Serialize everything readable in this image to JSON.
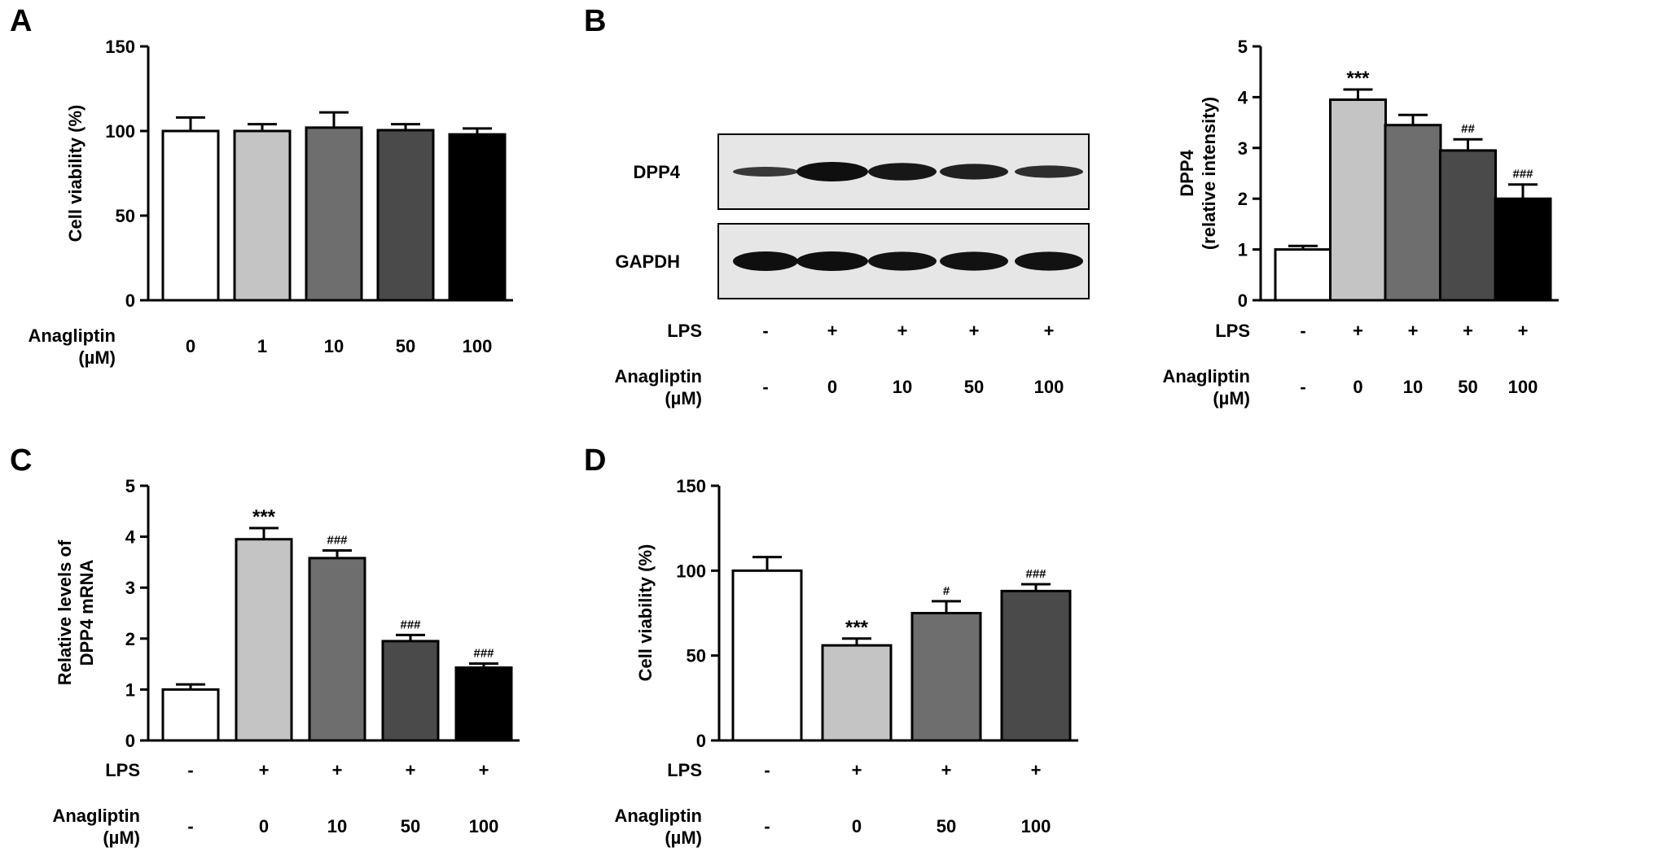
{
  "chart_data": [
    {
      "panel": "A",
      "type": "bar",
      "ylabel": "Cell viability (%)",
      "ylim": [
        0,
        150
      ],
      "yticks": [
        0,
        50,
        100,
        150
      ],
      "values": [
        100,
        100,
        102,
        100.5,
        98
      ],
      "errors": [
        8,
        4,
        9,
        3.5,
        3.5
      ],
      "fills": [
        "#ffffff",
        "#c4c4c4",
        "#6e6e6e",
        "#4a4a4a",
        "#000000"
      ],
      "annotations": [
        "",
        "",
        "",
        "",
        ""
      ],
      "rows": [
        {
          "label": "Anagliptin\n(µM)",
          "values": [
            "0",
            "1",
            "10",
            "50",
            "100"
          ]
        }
      ]
    },
    {
      "panel": "B",
      "type": "bar",
      "ylabel": "DPP4\n(relative intensity)",
      "ylim": [
        0,
        5
      ],
      "yticks": [
        0,
        1,
        2,
        3,
        4,
        5
      ],
      "values": [
        1.0,
        3.95,
        3.45,
        2.95,
        2.0
      ],
      "errors": [
        0.07,
        0.2,
        0.2,
        0.22,
        0.28
      ],
      "fills": [
        "#ffffff",
        "#c4c4c4",
        "#6e6e6e",
        "#4a4a4a",
        "#000000"
      ],
      "annotations": [
        "",
        "***",
        "",
        "##",
        "###"
      ],
      "rows": [
        {
          "label": "LPS",
          "values": [
            "-",
            "+",
            "+",
            "+",
            "+"
          ]
        },
        {
          "label": "Anagliptin\n(µM)",
          "values": [
            "-",
            "0",
            "10",
            "50",
            "100"
          ]
        }
      ]
    },
    {
      "panel": "C",
      "type": "bar",
      "ylabel": "Relative levels of\nDPP4 mRNA",
      "ylim": [
        0,
        5
      ],
      "yticks": [
        0,
        1,
        2,
        3,
        4,
        5
      ],
      "values": [
        1.0,
        3.95,
        3.58,
        1.95,
        1.43
      ],
      "errors": [
        0.1,
        0.22,
        0.15,
        0.12,
        0.08
      ],
      "fills": [
        "#ffffff",
        "#c4c4c4",
        "#6e6e6e",
        "#4a4a4a",
        "#000000"
      ],
      "annotations": [
        "",
        "***",
        "###",
        "###",
        "###"
      ],
      "rows": [
        {
          "label": "LPS",
          "values": [
            "-",
            "+",
            "+",
            "+",
            "+"
          ]
        },
        {
          "label": "Anagliptin\n(µM)",
          "values": [
            "-",
            "0",
            "10",
            "50",
            "100"
          ]
        }
      ]
    },
    {
      "panel": "D",
      "type": "bar",
      "ylabel": "Cell viability (%)",
      "ylim": [
        0,
        150
      ],
      "yticks": [
        0,
        50,
        100,
        150
      ],
      "values": [
        100,
        56,
        75,
        88
      ],
      "errors": [
        8,
        4,
        7,
        4
      ],
      "fills": [
        "#ffffff",
        "#c4c4c4",
        "#6e6e6e",
        "#4a4a4a"
      ],
      "annotations": [
        "",
        "***",
        "#",
        "###"
      ],
      "rows": [
        {
          "label": "LPS",
          "values": [
            "-",
            "+",
            "+",
            "+"
          ]
        },
        {
          "label": "Anagliptin\n(µM)",
          "values": [
            "-",
            "0",
            "50",
            "100"
          ]
        }
      ]
    }
  ],
  "western_blot": {
    "proteins": [
      "DPP4",
      "GAPDH"
    ],
    "band_intensity": {
      "DPP4": [
        0.25,
        1.0,
        0.85,
        0.7,
        0.45
      ],
      "GAPDH": [
        1.0,
        1.0,
        0.95,
        0.95,
        0.95
      ]
    },
    "rows": [
      {
        "label": "LPS",
        "values": [
          "-",
          "+",
          "+",
          "+",
          "+"
        ]
      },
      {
        "label": "Anagliptin\n(µM)",
        "values": [
          "-",
          "0",
          "10",
          "50",
          "100"
        ]
      }
    ]
  }
}
